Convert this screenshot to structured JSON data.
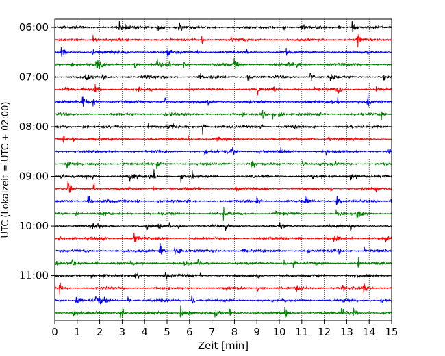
{
  "chart_data": {
    "type": "line",
    "xlabel": "Zeit  [min]",
    "ylabel": "UTC (Lokalzeit = UTC + 02:00)",
    "xlim": [
      0,
      15
    ],
    "x_ticks": [
      "0",
      "1",
      "2",
      "3",
      "4",
      "5",
      "6",
      "7",
      "8",
      "9",
      "10",
      "11",
      "12",
      "13",
      "14",
      "15"
    ],
    "y_ticks": [
      "06:00",
      "07:00",
      "08:00",
      "09:00",
      "10:00",
      "11:00"
    ],
    "vertical_grid": "dotted",
    "trace_colors": [
      "#000000",
      "#ff0000",
      "#0000ff",
      "#008000"
    ],
    "traces_start": "06:00",
    "trace_interval_min": 15,
    "trace_count": 24
  }
}
